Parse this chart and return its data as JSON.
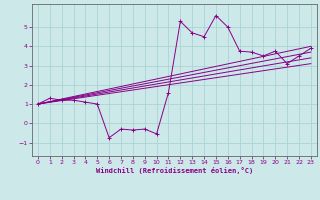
{
  "xlabel": "Windchill (Refroidissement éolien,°C)",
  "bg_color": "#cce8e8",
  "grid_color": "#aad4d4",
  "line_color": "#880088",
  "spine_color": "#666666",
  "xlim": [
    -0.5,
    23.5
  ],
  "ylim": [
    -1.7,
    6.2
  ],
  "xticks": [
    0,
    1,
    2,
    3,
    4,
    5,
    6,
    7,
    8,
    9,
    10,
    11,
    12,
    13,
    14,
    15,
    16,
    17,
    18,
    19,
    20,
    21,
    22,
    23
  ],
  "yticks": [
    -1,
    0,
    1,
    2,
    3,
    4,
    5
  ],
  "curve_x": [
    0,
    1,
    2,
    3,
    4,
    5,
    6,
    7,
    8,
    9,
    10,
    11,
    12,
    13,
    14,
    15,
    16,
    17,
    18,
    19,
    20,
    21,
    22,
    23
  ],
  "curve_y": [
    1.0,
    1.3,
    1.2,
    1.2,
    1.1,
    1.0,
    -0.75,
    -0.3,
    -0.35,
    -0.3,
    -0.55,
    1.6,
    5.3,
    4.7,
    4.5,
    5.6,
    5.0,
    3.75,
    3.7,
    3.5,
    3.75,
    3.1,
    3.5,
    3.9
  ],
  "line_fits": [
    {
      "x0": 0,
      "y0": 1.0,
      "x1": 23,
      "y1": 4.0
    },
    {
      "x0": 0,
      "y0": 1.0,
      "x1": 23,
      "y1": 3.7
    },
    {
      "x0": 0,
      "y0": 1.0,
      "x1": 23,
      "y1": 3.4
    },
    {
      "x0": 0,
      "y0": 1.0,
      "x1": 23,
      "y1": 3.1
    }
  ]
}
